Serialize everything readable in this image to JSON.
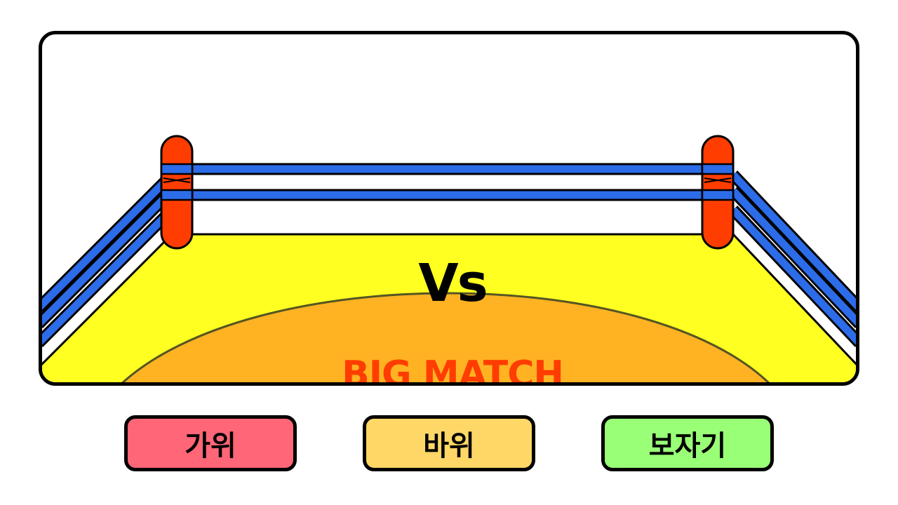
{
  "arena": {
    "vs_label": "Vs",
    "title": "BIG MATCH",
    "colors": {
      "floor": "#ffff22",
      "center_area": "#ffb322",
      "rope": "#2d6ce8",
      "post": "#ff3d00",
      "title": "#ff3d00"
    }
  },
  "choices": [
    {
      "label": "가위",
      "color": "#ff6677"
    },
    {
      "label": "바위",
      "color": "#ffd766"
    },
    {
      "label": "보자기",
      "color": "#99ff77"
    }
  ]
}
